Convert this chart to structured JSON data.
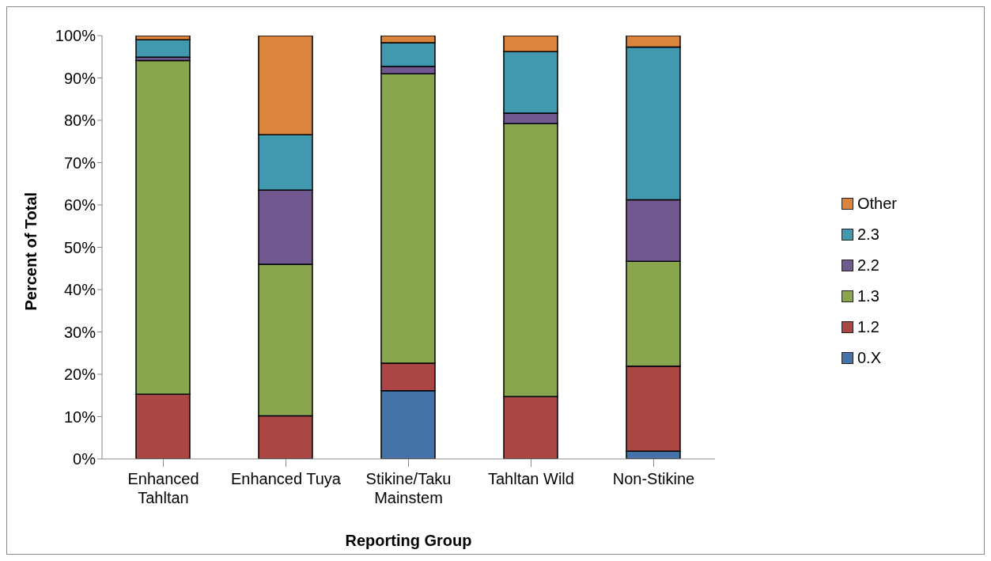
{
  "chart_data": {
    "type": "bar",
    "stacked": true,
    "xlabel": "Reporting Group",
    "ylabel": "Percent of Total",
    "categories": [
      "Enhanced Tahltan",
      "Enhanced Tuya",
      "Stikine/Taku Mainstem",
      "Tahltan Wild",
      "Non-Stikine"
    ],
    "series": [
      {
        "name": "0.X",
        "color": "#4572a7",
        "values": [
          0,
          null,
          16.1,
          0,
          1.8
        ]
      },
      {
        "name": "1.2",
        "color": "#aa4643",
        "values": [
          15.3,
          10.2,
          6.5,
          14.7,
          20.1
        ]
      },
      {
        "name": "1.3",
        "color": "#89a54e",
        "values": [
          78.8,
          35.8,
          68.4,
          64.5,
          24.8
        ]
      },
      {
        "name": "2.2",
        "color": "#71588f",
        "values": [
          0.8,
          17.5,
          1.7,
          2.5,
          14.5
        ]
      },
      {
        "name": "2.3",
        "color": "#4198af",
        "values": [
          4.1,
          13.1,
          5.6,
          14.5,
          36.1
        ]
      },
      {
        "name": "Other",
        "color": "#db843d",
        "values": [
          1,
          23.4,
          1.7,
          3.8,
          2.7
        ]
      }
    ],
    "ylim": [
      0,
      100
    ],
    "yticks": [
      {
        "value": 0,
        "label": "0%"
      },
      {
        "value": 10,
        "label": "10%"
      },
      {
        "value": 20,
        "label": "20%"
      },
      {
        "value": 30,
        "label": "30%"
      },
      {
        "value": 40,
        "label": "40%"
      },
      {
        "value": 50,
        "label": "50%"
      },
      {
        "value": 60,
        "label": "60%"
      },
      {
        "value": 70,
        "label": "70%"
      },
      {
        "value": 80,
        "label": "80%"
      },
      {
        "value": 90,
        "label": "90%"
      },
      {
        "value": 100,
        "label": "100%"
      }
    ],
    "grid": false,
    "legend": "right"
  }
}
